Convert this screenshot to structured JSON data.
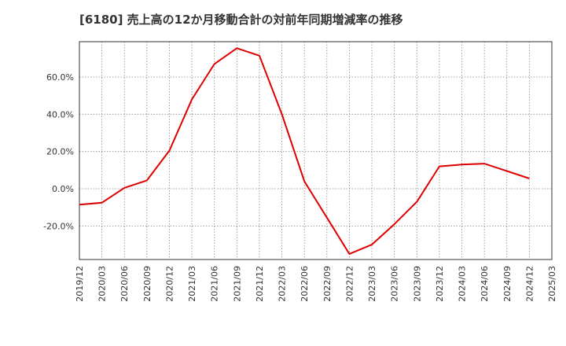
{
  "chart_data": {
    "type": "line",
    "title": "[6180]  売上高の12か月移動合計の対前年同期増減率の推移",
    "xlabel": "",
    "ylabel": "",
    "x_ticks": [
      "2019/12",
      "2020/03",
      "2020/06",
      "2020/09",
      "2020/12",
      "2021/03",
      "2021/06",
      "2021/09",
      "2021/12",
      "2022/03",
      "2022/06",
      "2022/09",
      "2022/12",
      "2023/03",
      "2023/06",
      "2023/09",
      "2023/12",
      "2024/03",
      "2024/06",
      "2024/09",
      "2024/12",
      "2025/03"
    ],
    "y_ticks": [
      -20,
      0,
      20,
      40,
      60
    ],
    "y_tick_labels": [
      "-20.0%",
      "0.0%",
      "20.0%",
      "40.0%",
      "60.0%"
    ],
    "ylim": [
      -38,
      79
    ],
    "grid": true,
    "series": [
      {
        "name": "対前年同期増減率",
        "color": "#dd0000",
        "x": [
          0,
          1,
          2,
          3,
          4,
          5,
          6,
          7,
          8,
          9,
          10,
          11,
          12,
          13,
          14,
          15,
          16,
          17,
          18,
          19,
          20
        ],
        "values": [
          -8.5,
          -7.5,
          0.5,
          4.5,
          20.5,
          48.0,
          67.0,
          75.5,
          71.5,
          40.0,
          4.0,
          -15.5,
          -35.0,
          -30.0,
          -19.0,
          -7.0,
          12.0,
          13.0,
          13.5,
          9.5,
          5.5
        ]
      }
    ]
  }
}
